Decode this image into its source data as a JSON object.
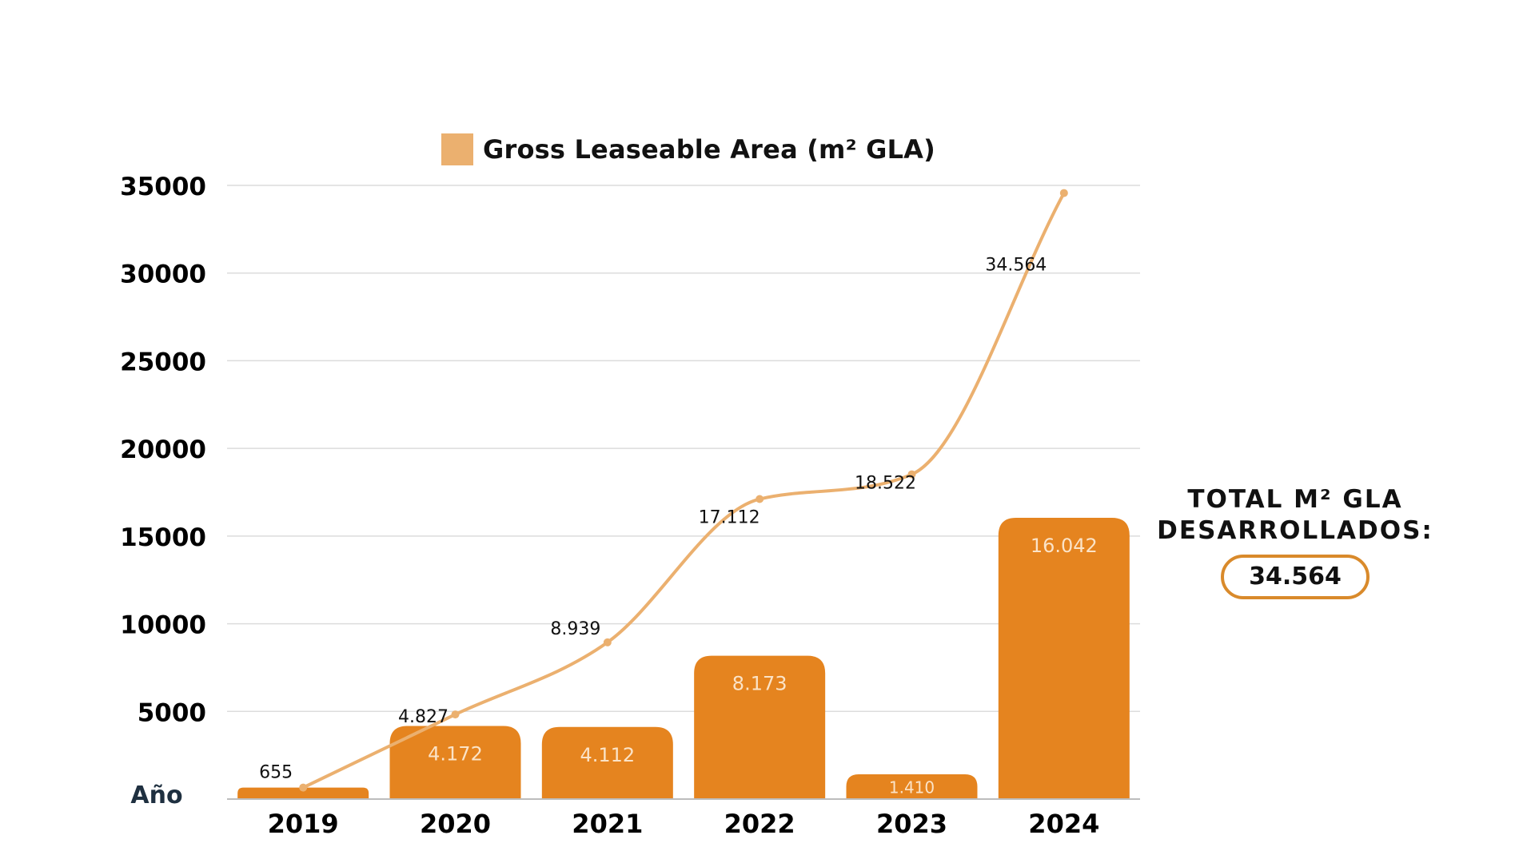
{
  "legend": {
    "label": "Gross Leaseable Area (m² GLA)",
    "swatch_color": "#ebb06f"
  },
  "total": {
    "title_line1": "TOTAL M² GLA",
    "title_line2": "DESARROLLADOS:",
    "value": "34.564",
    "border_color": "#d98a2b"
  },
  "chart_data": {
    "type": "bar",
    "title": "",
    "xlabel": "Año",
    "ylabel": "",
    "ylim": [
      0,
      35000
    ],
    "yticks": [
      35000,
      30000,
      25000,
      20000,
      15000,
      10000,
      5000
    ],
    "grid": true,
    "legend_position": "top-center",
    "categories": [
      "2019",
      "2020",
      "2021",
      "2022",
      "2023",
      "2024"
    ],
    "series": [
      {
        "type": "bar",
        "values": [
          655,
          4172,
          4112,
          8173,
          1410,
          16042
        ],
        "labels": [
          "655",
          "4.172",
          "4.112",
          "8.173",
          "1.410",
          "16.042"
        ],
        "color": "#e5841f"
      },
      {
        "name": "Gross Leaseable Area (m² GLA)",
        "type": "line",
        "values": [
          655,
          4827,
          8939,
          17112,
          18522,
          34564
        ],
        "labels": [
          "655",
          "4.827",
          "8.939",
          "17.112",
          "18.522",
          "34.564"
        ],
        "color": "#ebb06f"
      }
    ]
  }
}
